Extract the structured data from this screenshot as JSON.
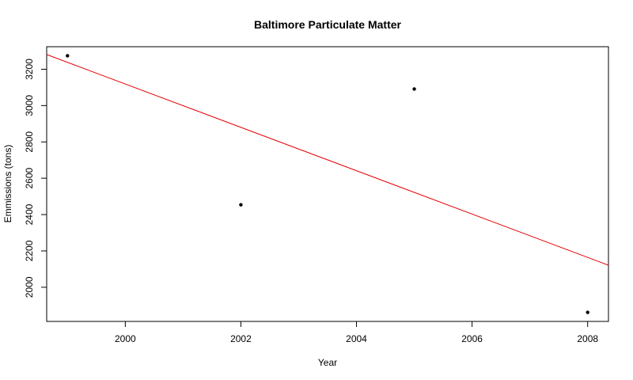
{
  "chart_data": {
    "type": "scatter",
    "title": "Baltimore Particulate Matter",
    "xlabel": "Year",
    "ylabel": "Emmissions (tons)",
    "x": [
      1999,
      2002,
      2005,
      2008
    ],
    "y": [
      3274,
      2454,
      3091,
      1862
    ],
    "xlim": [
      1998.64,
      2008.36
    ],
    "ylim": [
      1812,
      3324
    ],
    "xticks": [
      2000,
      2002,
      2004,
      2006,
      2008
    ],
    "yticks": [
      2000,
      2200,
      2400,
      2600,
      2800,
      3000,
      3200
    ],
    "trendline": {
      "color": "#e00000",
      "intercept_at_1999": 3238,
      "slope_per_year": -119.3
    },
    "point_color": "#000000",
    "grid": false,
    "legend": "none"
  }
}
